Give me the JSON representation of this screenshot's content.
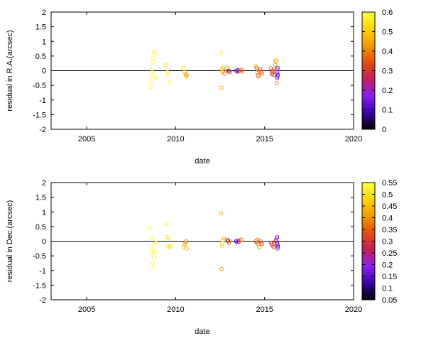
{
  "chart_data": [
    {
      "type": "scatter",
      "xlabel": "date",
      "ylabel": "residual in R.A.(arcsec)",
      "xlim": [
        2003,
        2020
      ],
      "ylim": [
        -2,
        2
      ],
      "xticks": [
        2005,
        2010,
        2015,
        2020
      ],
      "yticks": [
        -2,
        -1.5,
        -1,
        -0.5,
        0,
        0.5,
        1,
        1.5,
        2
      ],
      "ytick_labels": [
        "-2",
        "-1.5",
        "-1",
        "-0.5",
        "0",
        "0.5",
        "1",
        "1.5",
        "2"
      ],
      "reference_line_y": 0,
      "colorbar": {
        "range": [
          0,
          0.6
        ],
        "ticks": [
          0,
          0.1,
          0.2,
          0.3,
          0.4,
          0.5,
          0.6
        ],
        "tick_labels": [
          "0",
          "0.1",
          "0.2",
          "0.3",
          "0.4",
          "0.5",
          "0.6"
        ],
        "palette": [
          "#000000",
          "#3a00a8",
          "#8a1ff0",
          "#c0205a",
          "#e04d10",
          "#f29a00",
          "#ffd500",
          "#ffff40"
        ]
      },
      "points": [
        [
          2008.55,
          -0.55,
          0.58
        ],
        [
          2008.6,
          -0.4,
          0.57
        ],
        [
          2008.62,
          -0.2,
          0.58
        ],
        [
          2008.65,
          -0.1,
          0.57
        ],
        [
          2008.68,
          0.05,
          0.58
        ],
        [
          2008.72,
          0.3,
          0.57
        ],
        [
          2008.75,
          0.45,
          0.58
        ],
        [
          2008.8,
          0.65,
          0.56
        ],
        [
          2008.85,
          0.55,
          0.57
        ],
        [
          2008.9,
          -0.25,
          0.56
        ],
        [
          2009.45,
          0.2,
          0.56
        ],
        [
          2009.55,
          -0.05,
          0.55
        ],
        [
          2009.6,
          -0.15,
          0.55
        ],
        [
          2009.65,
          -0.4,
          0.56
        ],
        [
          2010.45,
          0.1,
          0.52
        ],
        [
          2010.5,
          -0.05,
          0.48
        ],
        [
          2010.55,
          -0.12,
          0.45
        ],
        [
          2010.6,
          -0.2,
          0.43
        ],
        [
          2010.62,
          -0.15,
          0.42
        ],
        [
          2012.55,
          0.6,
          0.55
        ],
        [
          2012.58,
          -0.58,
          0.45
        ],
        [
          2012.6,
          0.05,
          0.5
        ],
        [
          2012.62,
          -0.05,
          0.47
        ],
        [
          2012.65,
          0.1,
          0.44
        ],
        [
          2012.7,
          0.0,
          0.42
        ],
        [
          2012.75,
          -0.1,
          0.38
        ],
        [
          2012.9,
          0.1,
          0.42
        ],
        [
          2012.95,
          -0.02,
          0.35
        ],
        [
          2013.0,
          0.0,
          0.1
        ],
        [
          2013.05,
          -0.05,
          0.3
        ],
        [
          2013.4,
          0.0,
          0.1
        ],
        [
          2013.45,
          -0.03,
          0.15
        ],
        [
          2013.5,
          0.02,
          0.12
        ],
        [
          2013.55,
          -0.02,
          0.28
        ],
        [
          2013.6,
          0.0,
          0.32
        ],
        [
          2013.7,
          0.03,
          0.35
        ],
        [
          2013.75,
          -0.03,
          0.38
        ],
        [
          2014.5,
          0.15,
          0.42
        ],
        [
          2014.55,
          0.1,
          0.4
        ],
        [
          2014.58,
          0.05,
          0.38
        ],
        [
          2014.6,
          -0.05,
          0.36
        ],
        [
          2014.62,
          -0.15,
          0.4
        ],
        [
          2014.65,
          -0.2,
          0.38
        ],
        [
          2014.7,
          0.0,
          0.35
        ],
        [
          2014.75,
          0.05,
          0.33
        ],
        [
          2014.8,
          -0.05,
          0.37
        ],
        [
          2014.85,
          -0.1,
          0.35
        ],
        [
          2015.35,
          0.08,
          0.35
        ],
        [
          2015.4,
          -0.05,
          0.34
        ],
        [
          2015.42,
          -0.12,
          0.3
        ],
        [
          2015.45,
          0.0,
          0.28
        ],
        [
          2015.5,
          -0.15,
          0.33
        ],
        [
          2015.52,
          0.05,
          0.38
        ],
        [
          2015.55,
          -0.02,
          0.36
        ],
        [
          2015.6,
          0.2,
          0.42
        ],
        [
          2015.62,
          0.3,
          0.46
        ],
        [
          2015.65,
          0.35,
          0.44
        ],
        [
          2015.68,
          -0.1,
          0.2
        ],
        [
          2015.7,
          0.05,
          0.18
        ],
        [
          2015.72,
          -0.05,
          0.15
        ],
        [
          2015.75,
          -0.15,
          0.12
        ],
        [
          2015.72,
          -0.2,
          0.14
        ],
        [
          2015.7,
          -0.25,
          0.16
        ],
        [
          2015.68,
          -0.42,
          0.4
        ],
        [
          2015.74,
          0.1,
          0.2
        ]
      ]
    },
    {
      "type": "scatter",
      "xlabel": "date",
      "ylabel": "residual in Dec.(arcsec)",
      "xlim": [
        2003,
        2020
      ],
      "ylim": [
        -2,
        2
      ],
      "xticks": [
        2005,
        2010,
        2015,
        2020
      ],
      "yticks": [
        -2,
        -1.5,
        -1,
        -0.5,
        0,
        0.5,
        1,
        1.5,
        2
      ],
      "ytick_labels": [
        "-2",
        "-1.5",
        "-1",
        "-0.5",
        "0",
        "0.5",
        "1",
        "1.5",
        "2"
      ],
      "reference_line_y": 0,
      "colorbar": {
        "range": [
          0.05,
          0.55
        ],
        "ticks": [
          0.05,
          0.1,
          0.15,
          0.2,
          0.25,
          0.3,
          0.35,
          0.4,
          0.45,
          0.5,
          0.55
        ],
        "tick_labels": [
          "0.05",
          "0.1",
          "0.15",
          "0.2",
          "0.25",
          "0.3",
          "0.35",
          "0.4",
          "0.45",
          "0.5",
          "0.55"
        ],
        "palette": [
          "#000000",
          "#3a00a8",
          "#8a1ff0",
          "#c0205a",
          "#e04d10",
          "#f29a00",
          "#ffd500",
          "#ffff40"
        ]
      },
      "points": [
        [
          2008.55,
          0.45,
          0.53
        ],
        [
          2008.6,
          0.1,
          0.52
        ],
        [
          2008.62,
          -0.15,
          0.53
        ],
        [
          2008.65,
          -0.3,
          0.52
        ],
        [
          2008.68,
          -0.45,
          0.53
        ],
        [
          2008.72,
          -0.75,
          0.52
        ],
        [
          2008.75,
          -0.9,
          0.53
        ],
        [
          2008.8,
          -0.55,
          0.51
        ],
        [
          2008.85,
          -0.35,
          0.52
        ],
        [
          2008.9,
          -0.05,
          0.51
        ],
        [
          2009.45,
          0.6,
          0.51
        ],
        [
          2009.5,
          0.15,
          0.5
        ],
        [
          2009.55,
          -0.15,
          0.5
        ],
        [
          2009.6,
          0.1,
          0.49
        ],
        [
          2009.65,
          -0.2,
          0.5
        ],
        [
          2009.7,
          -0.18,
          0.49
        ],
        [
          2010.45,
          -0.2,
          0.45
        ],
        [
          2010.5,
          -0.12,
          0.42
        ],
        [
          2010.55,
          -0.05,
          0.4
        ],
        [
          2010.6,
          0.0,
          0.38
        ],
        [
          2010.62,
          -0.25,
          0.4
        ],
        [
          2012.55,
          0.95,
          0.42
        ],
        [
          2012.58,
          -0.95,
          0.4
        ],
        [
          2012.6,
          -0.15,
          0.45
        ],
        [
          2012.62,
          -0.05,
          0.48
        ],
        [
          2012.65,
          0.05,
          0.5
        ],
        [
          2012.7,
          0.1,
          0.44
        ],
        [
          2012.9,
          0.05,
          0.3
        ],
        [
          2012.95,
          0.0,
          0.1
        ],
        [
          2013.0,
          -0.05,
          0.35
        ],
        [
          2013.05,
          0.02,
          0.4
        ],
        [
          2013.4,
          0.0,
          0.12
        ],
        [
          2013.45,
          -0.03,
          0.15
        ],
        [
          2013.5,
          0.02,
          0.2
        ],
        [
          2013.55,
          -0.02,
          0.28
        ],
        [
          2013.6,
          0.03,
          0.35
        ],
        [
          2013.7,
          0.05,
          0.38
        ],
        [
          2014.5,
          0.0,
          0.35
        ],
        [
          2014.55,
          -0.05,
          0.33
        ],
        [
          2014.6,
          0.05,
          0.36
        ],
        [
          2014.65,
          -0.1,
          0.38
        ],
        [
          2014.7,
          -0.2,
          0.4
        ],
        [
          2014.75,
          0.02,
          0.37
        ],
        [
          2014.8,
          -0.05,
          0.34
        ],
        [
          2014.85,
          -0.1,
          0.35
        ],
        [
          2015.35,
          -0.05,
          0.3
        ],
        [
          2015.4,
          -0.1,
          0.28
        ],
        [
          2015.45,
          -0.15,
          0.3
        ],
        [
          2015.5,
          -0.2,
          0.32
        ],
        [
          2015.55,
          -0.08,
          0.34
        ],
        [
          2015.6,
          0.0,
          0.36
        ],
        [
          2015.65,
          0.05,
          0.2
        ],
        [
          2015.68,
          0.1,
          0.18
        ],
        [
          2015.7,
          -0.05,
          0.15
        ],
        [
          2015.72,
          -0.1,
          0.14
        ],
        [
          2015.74,
          -0.15,
          0.16
        ],
        [
          2015.72,
          -0.25,
          0.2
        ],
        [
          2015.7,
          0.15,
          0.22
        ],
        [
          2015.75,
          -0.2,
          0.17
        ]
      ]
    }
  ]
}
